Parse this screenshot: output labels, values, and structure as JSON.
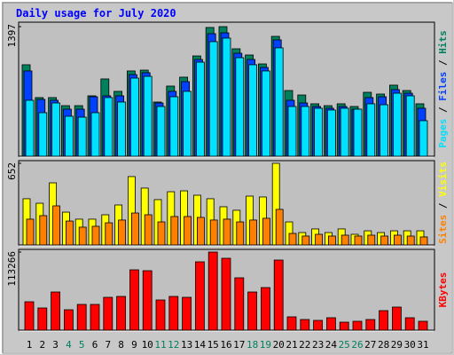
{
  "chart_data": [
    {
      "type": "bar",
      "title": "Daily usage for July 2020",
      "ylim": [
        0,
        1397
      ],
      "yticks": [
        1397
      ],
      "legend_separator": " / ",
      "series": [
        {
          "name": "Hits",
          "color": "#00805c",
          "values": [
            986,
            632,
            632,
            545,
            545,
            651,
            833,
            699,
            919,
            928,
            584,
            756,
            852,
            1081,
            1388,
            1397,
            1158,
            1091,
            995,
            1292,
            708,
            660,
            565,
            545,
            565,
            536,
            689,
            670,
            766,
            708,
            565
          ]
        },
        {
          "name": "Files",
          "color": "#0040ff",
          "values": [
            919,
            612,
            603,
            507,
            507,
            641,
            651,
            651,
            880,
            900,
            574,
            699,
            804,
            1043,
            1321,
            1330,
            1110,
            1043,
            957,
            1254,
            603,
            574,
            536,
            517,
            536,
            507,
            632,
            641,
            718,
            679,
            517
          ]
        },
        {
          "name": "Pages",
          "color": "#00e0ff",
          "values": [
            603,
            469,
            574,
            431,
            421,
            469,
            632,
            584,
            842,
            861,
            536,
            641,
            699,
            1014,
            1235,
            1273,
            1062,
            986,
            919,
            1168,
            536,
            536,
            517,
            498,
            517,
            507,
            565,
            555,
            679,
            651,
            383
          ]
        }
      ]
    },
    {
      "type": "bar",
      "ylim": [
        0,
        652
      ],
      "yticks": [
        652
      ],
      "legend_separator": " / ",
      "series": [
        {
          "name": "Visits",
          "color": "#ffff00",
          "values": [
            369,
            333,
            496,
            262,
            206,
            206,
            241,
            319,
            546,
            454,
            362,
            425,
            432,
            397,
            369,
            305,
            277,
            390,
            383,
            652,
            184,
            99,
            128,
            99,
            128,
            85,
            113,
            99,
            113,
            113,
            113
          ]
        },
        {
          "name": "Sites",
          "color": "#ff8000",
          "values": [
            206,
            234,
            312,
            191,
            142,
            149,
            177,
            199,
            255,
            241,
            184,
            227,
            227,
            220,
            199,
            206,
            184,
            199,
            213,
            284,
            92,
            71,
            85,
            71,
            78,
            71,
            78,
            71,
            78,
            71,
            64
          ]
        }
      ]
    },
    {
      "type": "bar",
      "ylim": [
        0,
        113266
      ],
      "yticks": [
        113266
      ],
      "categories": [
        "1",
        "2",
        "3",
        "4",
        "5",
        "6",
        "7",
        "8",
        "9",
        "10",
        "11",
        "12",
        "13",
        "14",
        "15",
        "16",
        "17",
        "18",
        "19",
        "20",
        "21",
        "22",
        "23",
        "24",
        "25",
        "26",
        "27",
        "28",
        "29",
        "30",
        "31"
      ],
      "highlight_categories": [
        3,
        4,
        10,
        11,
        17,
        18,
        24,
        25
      ],
      "highlight_color": "#00805c",
      "category_color": "#000000",
      "series": [
        {
          "name": "KBytes",
          "color": "#ff0000",
          "values": [
            41184,
            32175,
            55341,
            29601,
            37323,
            37323,
            47619,
            48906,
            87516,
            86229,
            43758,
            48906,
            47619,
            99099,
            113266,
            104247,
            75933,
            55341,
            61776,
            101673,
            19305,
            15444,
            14157,
            18018,
            11583,
            12870,
            15444,
            28314,
            33462,
            18018,
            12870
          ]
        }
      ]
    }
  ]
}
